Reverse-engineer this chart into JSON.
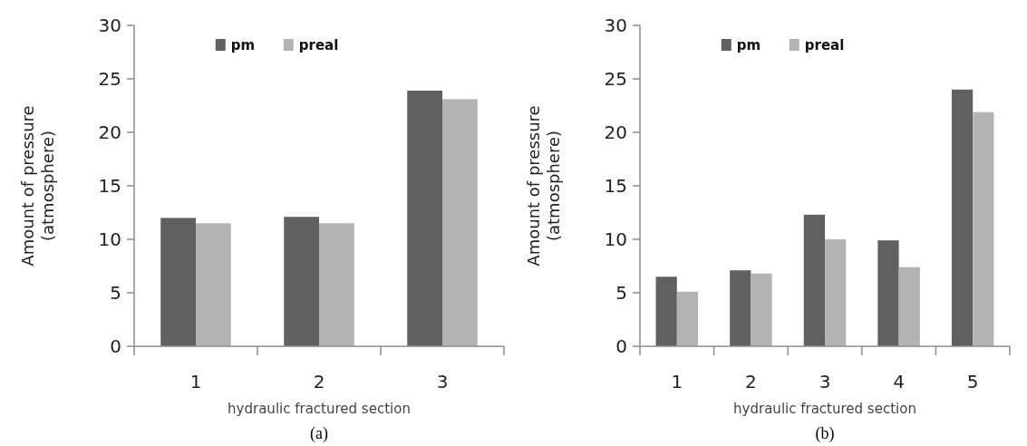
{
  "chart_data": [
    {
      "type": "bar",
      "xlabel": "hydraulic fractured section",
      "ylabel": "Amount of pressure\n(atmosphere)",
      "categories": [
        "1",
        "2",
        "3"
      ],
      "series": [
        {
          "name": "pm",
          "color": "#606060",
          "values": [
            12,
            12.1,
            23.9
          ]
        },
        {
          "name": "preal",
          "color": "#b3b3b3",
          "values": [
            11.5,
            11.5,
            23.1
          ]
        }
      ],
      "ylim": [
        0,
        30
      ],
      "yticks": [
        0,
        5,
        10,
        15,
        20,
        25,
        30
      ],
      "legend": "top",
      "annotations": [
        "(a)"
      ]
    },
    {
      "type": "bar",
      "xlabel": "hydraulic fractured section",
      "ylabel": "Amount of pressure\n(atmosphere)",
      "categories": [
        "1",
        "2",
        "3",
        "4",
        "5"
      ],
      "series": [
        {
          "name": "pm",
          "color": "#606060",
          "values": [
            6.5,
            7.1,
            12.3,
            9.9,
            24.0
          ]
        },
        {
          "name": "preal",
          "color": "#b3b3b3",
          "values": [
            5.1,
            6.8,
            10.0,
            7.4,
            21.9
          ]
        }
      ],
      "ylim": [
        0,
        30
      ],
      "yticks": [
        0,
        5,
        10,
        15,
        20,
        25,
        30
      ],
      "legend": "top",
      "annotations": [
        "(b)"
      ]
    }
  ]
}
